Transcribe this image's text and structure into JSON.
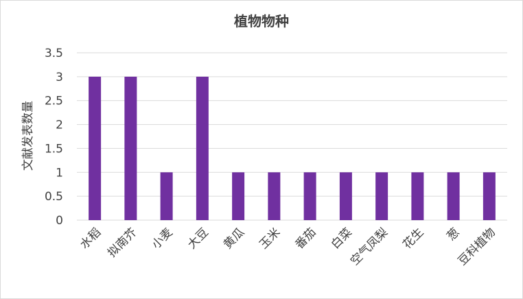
{
  "chart_data": {
    "type": "bar",
    "title": "植物物种",
    "xlabel": "",
    "ylabel": "文献发表数量",
    "ylim": [
      0,
      3.5
    ],
    "yticks": [
      "0",
      "0.5",
      "1",
      "1.5",
      "2",
      "2.5",
      "3",
      "3.5"
    ],
    "categories": [
      "水稻",
      "拟南芥",
      "小麦",
      "大豆",
      "黄瓜",
      "玉米",
      "番茄",
      "白菜",
      "空气凤梨",
      "花生",
      "葱",
      "豆科植物"
    ],
    "values": [
      3,
      3,
      1,
      3,
      1,
      1,
      1,
      1,
      1,
      1,
      1,
      1
    ],
    "grid": true,
    "legend": "none",
    "bar_color": "#7030a0"
  }
}
